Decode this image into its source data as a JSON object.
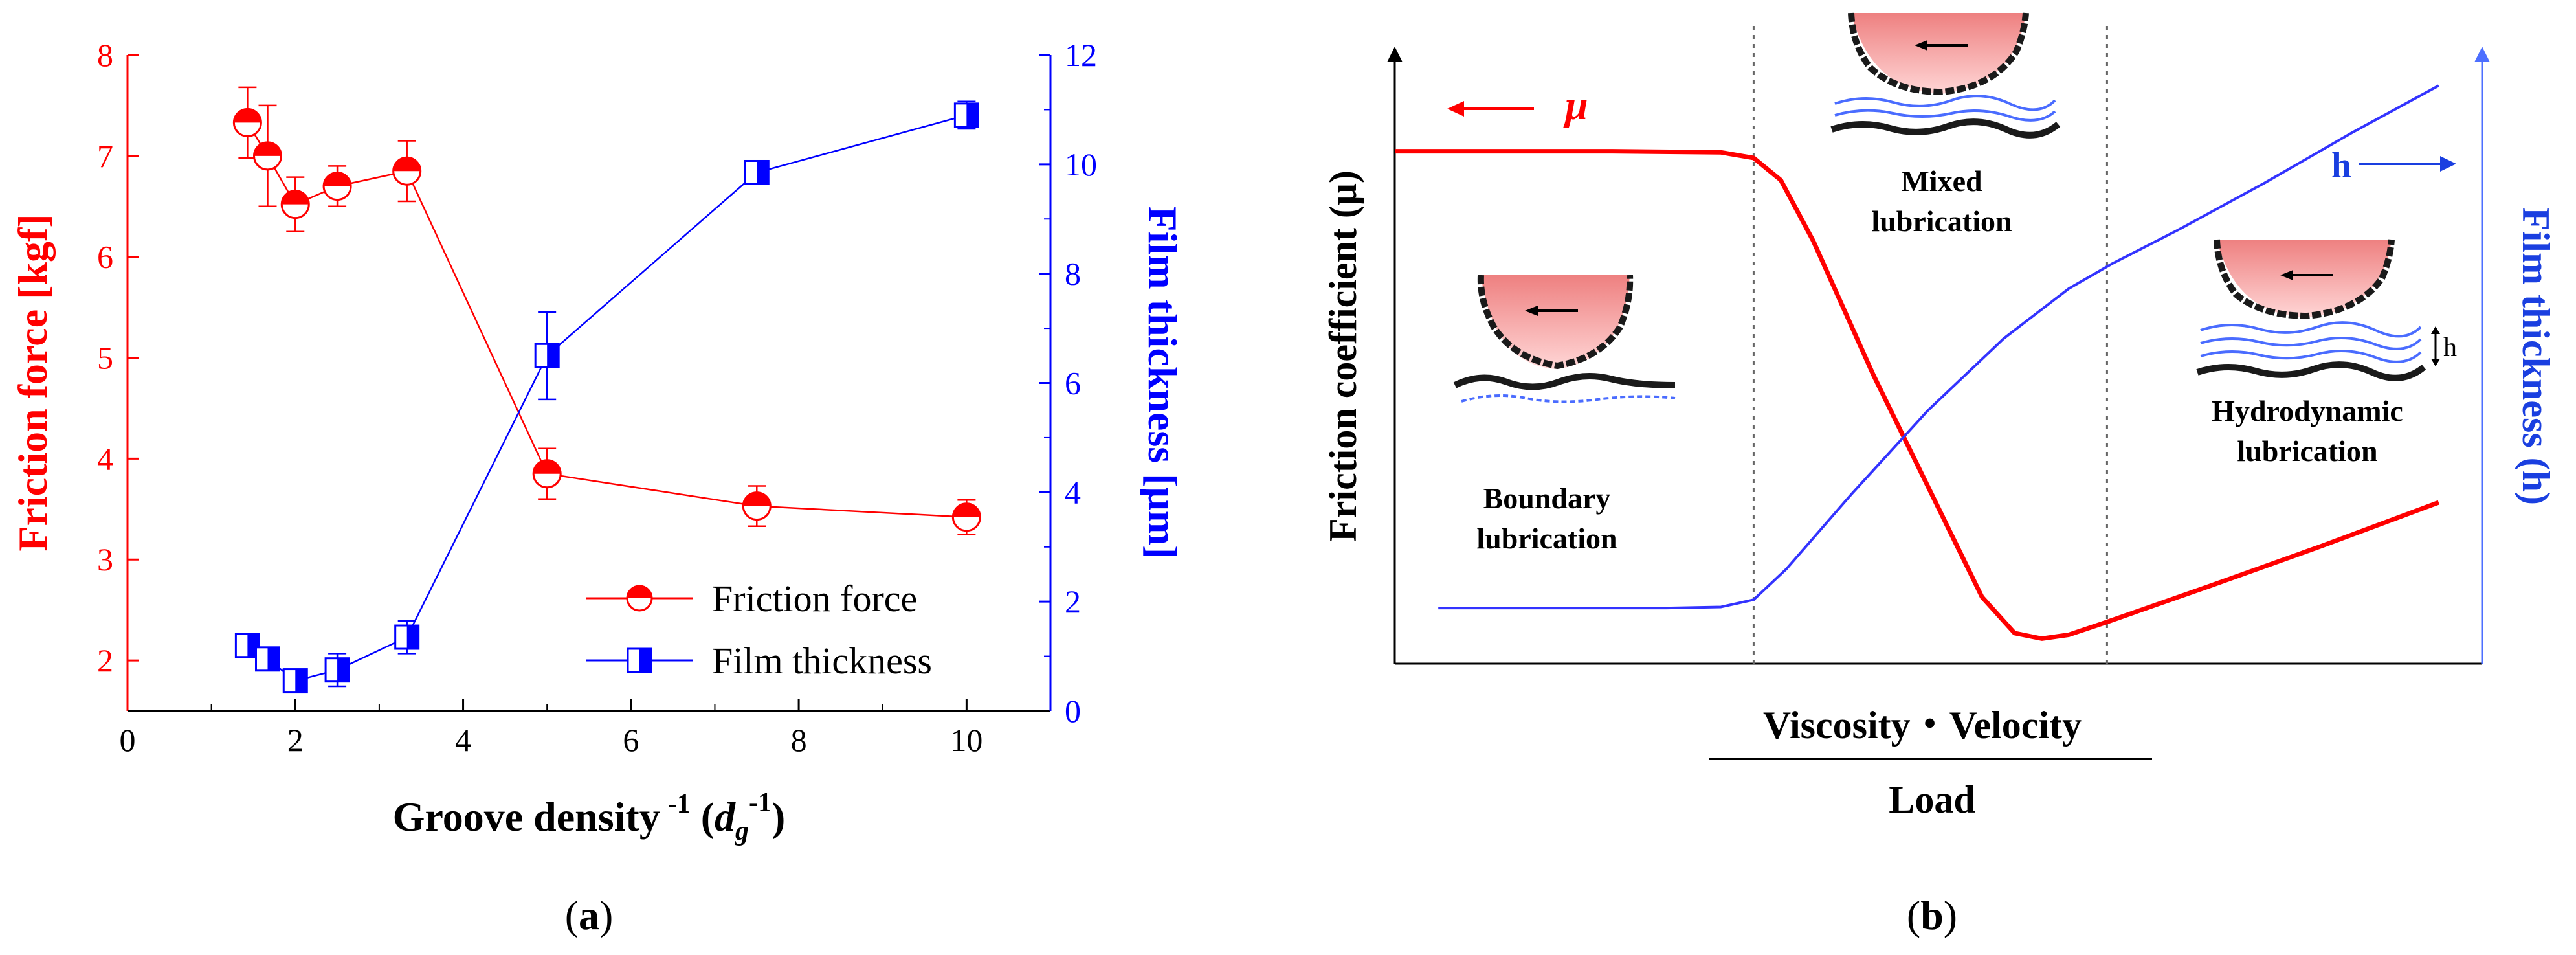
{
  "colors": {
    "friction": "#ff0000",
    "film": "#0000ff",
    "axis": "#000000"
  },
  "chart_data": [
    {
      "type": "scatter",
      "panel_label": "a",
      "xlabel_main": "Groove density",
      "xlabel_exp": "-1",
      "xlabel_paren_open": "(",
      "xlabel_var": "d",
      "xlabel_sub": "g",
      "xlabel_paren_close": ")",
      "ylabel_left": "Friction force [kgf]",
      "ylabel_right": "Film thickness [μm]",
      "xlim": [
        0,
        11
      ],
      "ylim_left": [
        1.5,
        8
      ],
      "ylim_right": [
        0,
        12
      ],
      "xticks": [
        0,
        2,
        4,
        6,
        8,
        10
      ],
      "yticks_left": [
        2,
        3,
        4,
        5,
        6,
        7,
        8
      ],
      "yticks_right": [
        0,
        2,
        4,
        6,
        8,
        10,
        12
      ],
      "series": [
        {
          "name": "Friction force",
          "axis": "left",
          "x": [
            1.43,
            1.67,
            2.0,
            2.5,
            3.33,
            5.0,
            7.5,
            10.0
          ],
          "y": [
            7.33,
            7.0,
            6.52,
            6.7,
            6.85,
            3.85,
            3.53,
            3.42
          ],
          "err": [
            0.35,
            0.5,
            0.27,
            0.2,
            0.3,
            0.25,
            0.2,
            0.17
          ]
        },
        {
          "name": "Film thickness",
          "axis": "right",
          "x": [
            1.43,
            1.67,
            2.0,
            2.5,
            3.33,
            5.0,
            7.5,
            10.0
          ],
          "y": [
            1.2,
            0.95,
            0.55,
            0.75,
            1.35,
            6.5,
            9.85,
            10.9
          ],
          "err": [
            0.1,
            0.2,
            0.1,
            0.3,
            0.3,
            0.8,
            0.2,
            0.25
          ]
        }
      ]
    },
    {
      "type": "line",
      "panel_label": "b",
      "ylabel_left": "Friction coefficient (μ)",
      "ylabel_right": "Film thickness (h)",
      "xlabel_top": "Viscosity・Velocity",
      "xlabel_bottom": "Load",
      "mu_label": "μ",
      "h_label": "h",
      "regions": [
        "Boundary",
        "lubrication",
        "Mixed",
        "lubrication",
        "Hydrodynamic",
        "lubrication"
      ],
      "h_mark": "h",
      "xlim": [
        0,
        10
      ],
      "ylim": [
        0,
        10
      ],
      "boundaries": [
        3.3,
        6.55
      ],
      "series": [
        {
          "name": "Friction coefficient",
          "x": [
            0,
            1.0,
            2.0,
            3.0,
            3.3,
            3.55,
            3.85,
            4.4,
            5.0,
            5.4,
            5.7,
            5.95,
            6.2,
            6.55,
            7.5,
            8.5,
            9.6
          ],
          "y": [
            9.22,
            9.22,
            9.22,
            9.2,
            9.1,
            8.7,
            7.6,
            5.2,
            2.8,
            1.2,
            0.55,
            0.45,
            0.52,
            0.75,
            1.4,
            2.1,
            2.9
          ]
        },
        {
          "name": "Film thickness",
          "x": [
            0.4,
            1.5,
            2.5,
            3.0,
            3.3,
            3.6,
            4.2,
            4.9,
            5.6,
            6.2,
            6.6,
            7.2,
            8.0,
            8.8,
            9.6
          ],
          "y": [
            1.0,
            1.0,
            1.0,
            1.02,
            1.15,
            1.7,
            3.05,
            4.55,
            5.85,
            6.75,
            7.2,
            7.8,
            8.65,
            9.55,
            10.4
          ]
        }
      ]
    }
  ]
}
